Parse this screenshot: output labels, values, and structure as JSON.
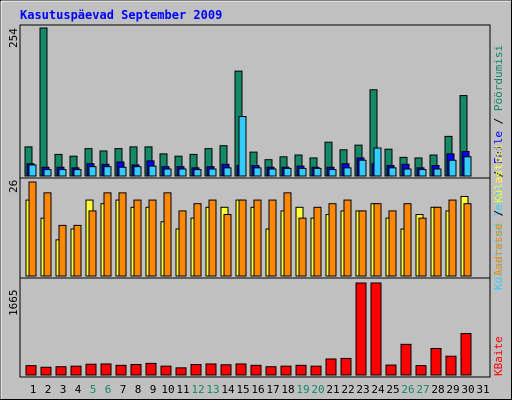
{
  "title": "Kasutuspäevad September 2009",
  "colors": {
    "frame_bg": "#c0c0c0",
    "title": "#0000ff",
    "page_counts": "#148867",
    "file_counts": "#0000ff",
    "visit_counts": "#33ccff",
    "visits_left": "#ffff33",
    "visits_right": "#ff8800",
    "kbytes": "#ff0000",
    "weekend_day": "#148867",
    "normal_day": "#000000"
  },
  "chart_data": [
    {
      "type": "bar",
      "panel": "top",
      "ymax_label": "254",
      "legend": {
        "page": "Pöördumisi",
        "file": "Faile",
        "visit": "Külastatud lehti",
        "sep": "/"
      },
      "categories": [
        "1",
        "2",
        "3",
        "4",
        "5",
        "6",
        "7",
        "8",
        "9",
        "10",
        "11",
        "12",
        "13",
        "14",
        "15",
        "16",
        "17",
        "18",
        "19",
        "20",
        "21",
        "22",
        "23",
        "24",
        "25",
        "26",
        "27",
        "28",
        "29",
        "30",
        "31"
      ],
      "weekend": [
        5,
        6,
        12,
        13,
        19,
        20,
        26,
        27
      ],
      "ylim": [
        0,
        254
      ],
      "series": [
        {
          "name": "Pöördumisi",
          "values": [
            50,
            254,
            37,
            34,
            47,
            43,
            47,
            50,
            50,
            38,
            34,
            37,
            47,
            52,
            180,
            41,
            28,
            33,
            36,
            31,
            58,
            45,
            53,
            148,
            46,
            32,
            31,
            36,
            68,
            138,
            0
          ]
        },
        {
          "name": "Faile",
          "values": [
            21,
            15,
            15,
            14,
            21,
            20,
            24,
            19,
            26,
            16,
            16,
            14,
            16,
            20,
            18,
            18,
            15,
            15,
            17,
            15,
            15,
            21,
            31,
            21,
            18,
            20,
            14,
            18,
            38,
            42,
            0
          ]
        },
        {
          "name": "Külastatud lehti",
          "values": [
            19,
            11,
            11,
            11,
            16,
            16,
            15,
            16,
            17,
            12,
            12,
            11,
            12,
            14,
            102,
            14,
            12,
            13,
            13,
            13,
            11,
            14,
            27,
            48,
            14,
            12,
            11,
            12,
            27,
            33,
            0
          ]
        }
      ]
    },
    {
      "type": "bar",
      "panel": "middle",
      "ymax_label": "26",
      "legend": {
        "visits": "Külastusi",
        "unique": "Aadresse",
        "sep": "/"
      },
      "categories": [
        "1",
        "2",
        "3",
        "4",
        "5",
        "6",
        "7",
        "8",
        "9",
        "10",
        "11",
        "12",
        "13",
        "14",
        "15",
        "16",
        "17",
        "18",
        "19",
        "20",
        "21",
        "22",
        "23",
        "24",
        "25",
        "26",
        "27",
        "28",
        "29",
        "30",
        "31"
      ],
      "ylim": [
        0,
        26
      ],
      "series": [
        {
          "name": "Aadresse",
          "values": [
            21,
            16,
            10,
            13,
            21,
            20,
            21,
            19,
            19,
            15,
            13,
            16,
            19,
            19,
            21,
            19,
            13,
            18,
            19,
            16,
            17,
            18,
            18,
            20,
            16,
            13,
            17,
            19,
            18,
            22,
            0
          ]
        },
        {
          "name": "Külastusi",
          "values": [
            26,
            23,
            14,
            14,
            18,
            23,
            23,
            21,
            21,
            23,
            18,
            20,
            21,
            17,
            21,
            21,
            21,
            23,
            16,
            19,
            20,
            21,
            18,
            20,
            18,
            20,
            16,
            19,
            21,
            20,
            0
          ]
        }
      ]
    },
    {
      "type": "bar",
      "panel": "bottom",
      "ymax_label": "1665",
      "legend": {
        "kbytes": "KBaite"
      },
      "categories": [
        "1",
        "2",
        "3",
        "4",
        "5",
        "6",
        "7",
        "8",
        "9",
        "10",
        "11",
        "12",
        "13",
        "14",
        "15",
        "16",
        "17",
        "18",
        "19",
        "20",
        "21",
        "22",
        "23",
        "24",
        "25",
        "26",
        "27",
        "28",
        "29",
        "30",
        "31"
      ],
      "ylim": [
        0,
        1665
      ],
      "series": [
        {
          "name": "KBaite",
          "values": [
            170,
            140,
            150,
            160,
            195,
            200,
            175,
            190,
            210,
            160,
            130,
            190,
            200,
            185,
            200,
            175,
            150,
            160,
            175,
            160,
            290,
            300,
            1665,
            1665,
            180,
            555,
            170,
            480,
            340,
            750,
            0
          ]
        }
      ]
    }
  ]
}
